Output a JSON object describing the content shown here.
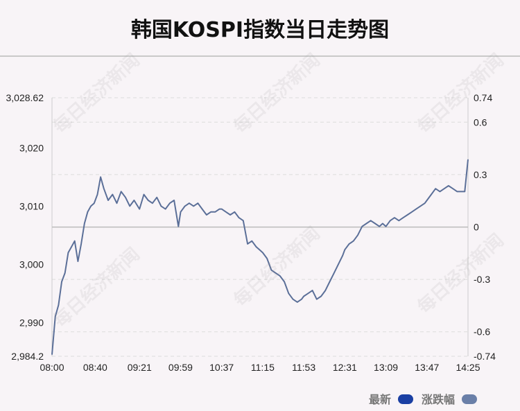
{
  "title": "韩国KOSPI指数当日走势图",
  "watermark": "每日经济新闻",
  "legend": [
    {
      "label": "最新",
      "color": "#1a3fa3"
    },
    {
      "label": "涨跌幅",
      "color": "#6a7fa8"
    }
  ],
  "colors": {
    "line": "#5b6f98",
    "grid": "#dcdcdc",
    "zero_line": "#bbbbbb",
    "text": "#222222"
  },
  "chart_data": {
    "type": "line",
    "title": "韩国KOSPI指数当日走势图",
    "x_ticks": [
      "08:00",
      "08:40",
      "09:21",
      "09:59",
      "10:37",
      "11:15",
      "11:53",
      "12:31",
      "13:09",
      "13:47",
      "14:25"
    ],
    "y_left_ticks": [
      "3,028.62",
      "3,020",
      "3,010",
      "3,000",
      "2,990",
      "2,984.2"
    ],
    "y_left_values": [
      3028.62,
      3020,
      3010,
      3000,
      2990,
      2984.2
    ],
    "y_right_ticks": [
      "0.74",
      "0.6",
      "0.3",
      "0",
      "-0.3",
      "-0.6",
      "-0.74"
    ],
    "y_right_values": [
      0.74,
      0.6,
      0.3,
      0,
      -0.3,
      -0.6,
      -0.74
    ],
    "ylim_left": [
      2984.2,
      3028.62
    ],
    "ylim_right": [
      -0.74,
      0.74
    ],
    "reference_value": 3006.4,
    "grid": true,
    "legend_position": "bottom-right",
    "series": [
      {
        "name": "最新",
        "x": [
          "08:00",
          "08:03",
          "08:06",
          "08:09",
          "08:12",
          "08:15",
          "08:18",
          "08:21",
          "08:24",
          "08:27",
          "08:30",
          "08:33",
          "08:36",
          "08:39",
          "08:42",
          "08:45",
          "08:48",
          "08:52",
          "08:56",
          "09:00",
          "09:04",
          "09:08",
          "09:12",
          "09:16",
          "09:21",
          "09:25",
          "09:29",
          "09:33",
          "09:37",
          "09:41",
          "09:45",
          "09:49",
          "09:53",
          "09:57",
          "09:59",
          "10:03",
          "10:07",
          "10:11",
          "10:15",
          "10:19",
          "10:23",
          "10:27",
          "10:31",
          "10:35",
          "10:37",
          "10:41",
          "10:45",
          "10:49",
          "10:53",
          "10:57",
          "11:01",
          "11:05",
          "11:09",
          "11:12",
          "11:15",
          "11:19",
          "11:23",
          "11:27",
          "11:31",
          "11:35",
          "11:39",
          "11:43",
          "11:47",
          "11:51",
          "11:53",
          "11:57",
          "12:01",
          "12:05",
          "12:09",
          "12:13",
          "12:17",
          "12:21",
          "12:25",
          "12:29",
          "12:31",
          "12:35",
          "12:39",
          "12:43",
          "12:47",
          "12:51",
          "12:55",
          "12:59",
          "13:03",
          "13:06",
          "13:09",
          "13:13",
          "13:17",
          "13:21",
          "13:25",
          "13:29",
          "13:33",
          "13:37",
          "13:41",
          "13:45",
          "13:47",
          "13:51",
          "13:55",
          "13:59",
          "14:03",
          "14:07",
          "14:11",
          "14:15",
          "14:19",
          "14:22",
          "14:25"
        ],
        "values": [
          2984.5,
          2991,
          2993,
          2997,
          2998.5,
          3002,
          3003,
          3004,
          3000.5,
          3003.5,
          3007,
          3009,
          3010,
          3010.5,
          3012,
          3015,
          3013,
          3011,
          3012,
          3010.5,
          3012.5,
          3011.5,
          3010,
          3011,
          3009.5,
          3012,
          3011,
          3010.5,
          3011.5,
          3010,
          3009.5,
          3010.5,
          3011,
          3006.5,
          3009,
          3010,
          3010.5,
          3010,
          3010.5,
          3009.5,
          3008.5,
          3009,
          3009,
          3009.5,
          3009.5,
          3009,
          3008.5,
          3009,
          3008,
          3007.5,
          3003.5,
          3004,
          3003,
          3002.5,
          3002,
          3001,
          2999,
          2998.5,
          2998,
          2997,
          2995,
          2994,
          2993.5,
          2994,
          2994.5,
          2995,
          2995.5,
          2994,
          2994.5,
          2995.5,
          2997,
          2998.5,
          3000,
          3001.5,
          3002.5,
          3003.5,
          3004,
          3005,
          3006.5,
          3007,
          3007.5,
          3007,
          3006.5,
          3007,
          3006.5,
          3007.5,
          3008,
          3007.5,
          3008,
          3008.5,
          3009,
          3009.5,
          3010,
          3010.5,
          3011,
          3012,
          3013,
          3012.5,
          3013,
          3013.5,
          3013,
          3012.5,
          3012.5,
          3012.5,
          3018
        ]
      }
    ]
  }
}
